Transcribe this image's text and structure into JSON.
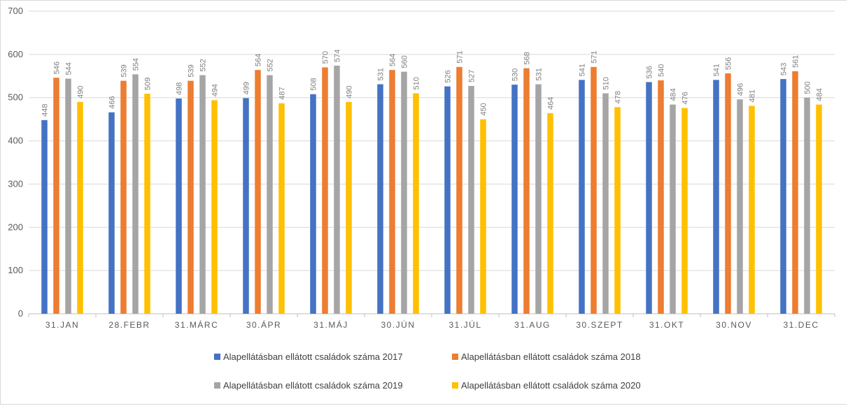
{
  "chart_data": {
    "type": "bar",
    "categories": [
      "31.JAN",
      "28.FEBR",
      "31.MÁRC",
      "30.ÁPR",
      "31.MÁJ",
      "30.JÚN",
      "31.JÚL",
      "31.AUG",
      "30.SZEPT",
      "31.OKT",
      "30.NOV",
      "31.DEC"
    ],
    "series": [
      {
        "name": "Alapellátásban ellátott családok száma 2017",
        "color": "#4472c4",
        "values": [
          448,
          466,
          498,
          499,
          508,
          531,
          526,
          530,
          541,
          536,
          541,
          543
        ]
      },
      {
        "name": "Alapellátásban ellátott családok száma 2018",
        "color": "#ed7d31",
        "values": [
          546,
          539,
          539,
          564,
          570,
          564,
          571,
          568,
          571,
          540,
          556,
          561
        ]
      },
      {
        "name": "Alapellátásban ellátott családok száma 2019",
        "color": "#a5a5a5",
        "values": [
          544,
          554,
          552,
          552,
          574,
          560,
          527,
          531,
          510,
          484,
          496,
          500
        ]
      },
      {
        "name": "Alapellátásban ellátott családok száma 2020",
        "color": "#ffc000",
        "values": [
          490,
          509,
          494,
          487,
          490,
          510,
          450,
          464,
          478,
          476,
          481,
          484
        ]
      }
    ],
    "yticks": [
      0,
      100,
      200,
      300,
      400,
      500,
      600,
      700
    ],
    "ylim": [
      0,
      700
    ],
    "grid": true,
    "legend_position": "bottom",
    "data_labels": true
  }
}
